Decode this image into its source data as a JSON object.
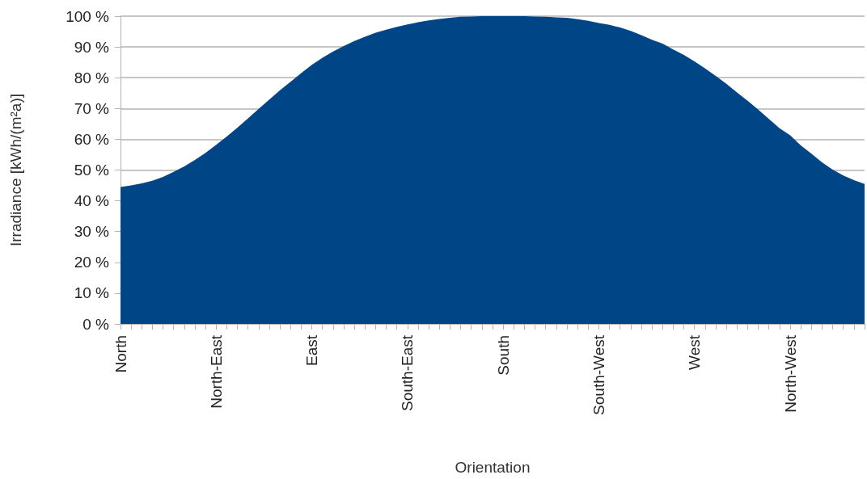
{
  "chart_data": {
    "type": "area",
    "xlabel": "Orientation",
    "ylabel": "Irradiance [kWh/(m²a)]",
    "categories": [
      "North",
      null,
      null,
      null,
      null,
      null,
      null,
      null,
      null,
      "North-East",
      null,
      null,
      null,
      null,
      null,
      null,
      null,
      null,
      "East",
      null,
      null,
      null,
      null,
      null,
      null,
      null,
      null,
      "South-East",
      null,
      null,
      null,
      null,
      null,
      null,
      null,
      null,
      "South",
      null,
      null,
      null,
      null,
      null,
      null,
      null,
      null,
      "South-West",
      null,
      null,
      null,
      null,
      null,
      null,
      null,
      null,
      "West",
      null,
      null,
      null,
      null,
      null,
      null,
      null,
      null,
      "North-West",
      null,
      null,
      null,
      null,
      null,
      null,
      null
    ],
    "series": [
      {
        "color": "#004586",
        "values": [
          44.5,
          45,
          45.7,
          46.5,
          47.8,
          49.4,
          51.2,
          53.3,
          55.6,
          58.2,
          60.9,
          63.8,
          66.8,
          69.9,
          72.9,
          75.9,
          78.7,
          81.5,
          84.2,
          86.5,
          88.5,
          90.3,
          91.9,
          93.3,
          94.6,
          95.6,
          96.5,
          97.3,
          98,
          98.6,
          99.1,
          99.5,
          99.8,
          99.9,
          100,
          100,
          100,
          100,
          100,
          99.9,
          99.8,
          99.6,
          99.5,
          99,
          98.5,
          97.8,
          97.2,
          96.3,
          95.2,
          93.8,
          92.3,
          91.1,
          89.2,
          87.4,
          85.3,
          83,
          80.6,
          78,
          75.2,
          72.5,
          69.6,
          66.6,
          63.6,
          61.3,
          58,
          55.3,
          52.5,
          50.1,
          48.2,
          46.7,
          45.5
        ]
      }
    ],
    "ylim": [
      0,
      100
    ],
    "yticks": [
      {
        "value": 0,
        "label": "0 %"
      },
      {
        "value": 10,
        "label": "10 %"
      },
      {
        "value": 20,
        "label": "20 %"
      },
      {
        "value": 30,
        "label": "30 %"
      },
      {
        "value": 40,
        "label": "40 %"
      },
      {
        "value": 50,
        "label": "50 %"
      },
      {
        "value": 60,
        "label": "60 %"
      },
      {
        "value": 70,
        "label": "70 %"
      },
      {
        "value": 80,
        "label": "80 %"
      },
      {
        "value": 90,
        "label": "90 %"
      },
      {
        "value": 100,
        "label": "100 %"
      }
    ],
    "grid": "y"
  }
}
